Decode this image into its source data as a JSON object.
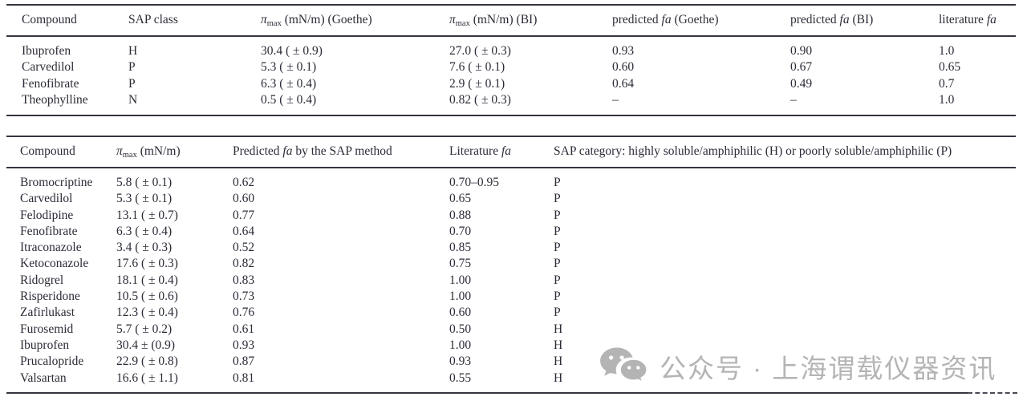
{
  "page": {
    "background": "#ffffff",
    "ink_color": "#2c2c38",
    "rule_color": "#35353f",
    "watermark_color": "#b4b4b4"
  },
  "table1": {
    "headers": {
      "h1": "Compound",
      "h2": "SAP class",
      "h3": {
        "pi": "π",
        "sub": "max",
        "rest": " (mN/m) (Goethe)"
      },
      "h4": {
        "pi": "π",
        "sub": "max",
        "rest": " (mN/m) (BI)"
      },
      "h5": {
        "pre": "predicted ",
        "it": "fa",
        "post": " (Goethe)"
      },
      "h6": {
        "pre": "predicted ",
        "it": "fa",
        "post": " (BI)"
      },
      "h7": {
        "pre": "literature ",
        "it": "fa",
        "post": ""
      }
    },
    "rows": [
      [
        "Ibuprofen",
        "H",
        "30.4 ( ± 0.9)",
        "27.0 ( ± 0.3)",
        "0.93",
        "0.90",
        "1.0"
      ],
      [
        "Carvedilol",
        "P",
        "5.3 ( ± 0.1)",
        "7.6 ( ± 0.1)",
        "0.60",
        "0.67",
        "0.65"
      ],
      [
        "Fenofibrate",
        "P",
        "6.3 ( ± 0.4)",
        "2.9 ( ± 0.1)",
        "0.64",
        "0.49",
        "0.7"
      ],
      [
        "Theophylline",
        "N",
        "0.5 ( ± 0.4)",
        "0.82 ( ± 0.3)",
        "–",
        "–",
        "1.0"
      ]
    ]
  },
  "table2": {
    "headers": {
      "h1": "Compound",
      "h2": {
        "pi": "π",
        "sub": "max",
        "rest": " (mN/m)"
      },
      "h3": {
        "pre": "Predicted ",
        "it": "fa",
        "post": " by the SAP method"
      },
      "h4": {
        "pre": "Literature ",
        "it": "fa",
        "post": ""
      },
      "h5": "SAP category: highly soluble/amphiphilic (H) or poorly soluble/amphiphilic (P)"
    },
    "rows": [
      [
        "Bromocriptine",
        "5.8 ( ± 0.1)",
        "0.62",
        "0.70–0.95",
        "P"
      ],
      [
        "Carvedilol",
        "5.3 ( ± 0.1)",
        "0.60",
        "0.65",
        "P"
      ],
      [
        "Felodipine",
        "13.1 ( ± 0.7)",
        "0.77",
        "0.88",
        "P"
      ],
      [
        "Fenofibrate",
        "6.3 ( ± 0.4)",
        "0.64",
        "0.70",
        "P"
      ],
      [
        "Itraconazole",
        "3.4 ( ± 0.3)",
        "0.52",
        "0.85",
        "P"
      ],
      [
        "Ketoconazole",
        "17.6 ( ± 0.3)",
        "0.82",
        "0.75",
        "P"
      ],
      [
        "Ridogrel",
        "18.1 ( ± 0.4)",
        "0.83",
        "1.00",
        "P"
      ],
      [
        "Risperidone",
        "10.5 ( ± 0.6)",
        "0.73",
        "1.00",
        "P"
      ],
      [
        "Zafirlukast",
        "12.3 ( ± 0.4)",
        "0.76",
        "0.60",
        "P"
      ],
      [
        "Furosemid",
        "5.7 ( ± 0.2)",
        "0.61",
        "0.50",
        "H"
      ],
      [
        "Ibuprofen",
        "30.4 ± (0.9)",
        "0.93",
        "1.00",
        "H"
      ],
      [
        "Prucalopride",
        "22.9 ( ± 0.8)",
        "0.87",
        "0.93",
        "H"
      ],
      [
        "Valsartan",
        "16.6 ( ± 1.1)",
        "0.81",
        "0.55",
        "H"
      ]
    ]
  },
  "watermark": {
    "icon": "wechat-logo",
    "text": "公众号 · 上海谓载仪器资讯"
  }
}
